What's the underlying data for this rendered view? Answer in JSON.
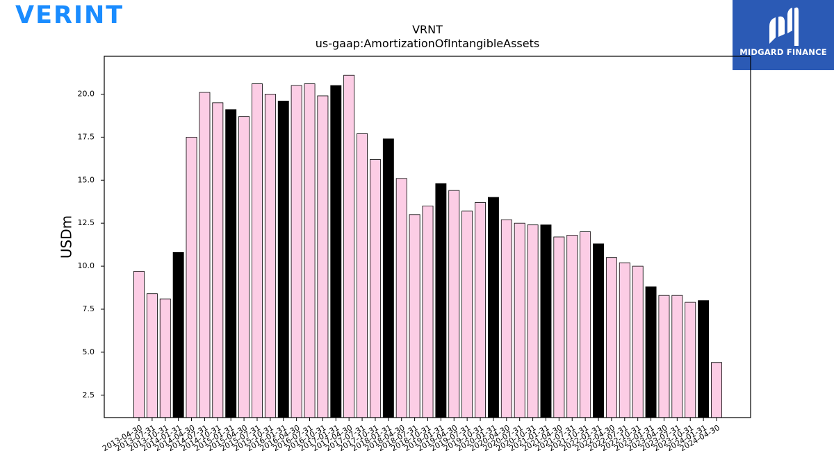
{
  "brand": {
    "name": "VERINT"
  },
  "watermark": {
    "label": "MIDGARD FINANCE"
  },
  "colors": {
    "highlight": "#000000",
    "normal": "#fccde5",
    "edge": "#000000",
    "watermark_bg": "#2b5ab5",
    "brand_text": "#1a8cff"
  },
  "chart_data": {
    "type": "bar",
    "title": "VRNT",
    "subtitle": "us-gaap:AmortizationOfIntangibleAssets",
    "ylabel": "USDm",
    "xlabel": "",
    "ylim": [
      1.2,
      22.2
    ],
    "yticks": [
      "2.5",
      "5.0",
      "7.5",
      "10.0",
      "12.5",
      "15.0",
      "17.5",
      "20.0"
    ],
    "grid": false,
    "categories": [
      "2013-04-30",
      "2013-07-31",
      "2013-10-31",
      "2014-01-31",
      "2014-04-30",
      "2014-07-31",
      "2014-10-31",
      "2015-01-31",
      "2015-04-30",
      "2015-07-31",
      "2015-10-31",
      "2016-01-31",
      "2016-04-30",
      "2016-07-31",
      "2016-10-31",
      "2017-01-31",
      "2017-04-30",
      "2017-07-31",
      "2017-10-31",
      "2018-01-31",
      "2018-04-30",
      "2018-07-31",
      "2018-10-31",
      "2019-01-31",
      "2019-04-30",
      "2019-07-31",
      "2019-10-31",
      "2020-01-31",
      "2020-04-30",
      "2020-07-31",
      "2020-10-31",
      "2021-01-31",
      "2021-04-30",
      "2021-07-31",
      "2021-10-31",
      "2022-01-31",
      "2022-04-30",
      "2022-07-31",
      "2022-10-31",
      "2023-01-31",
      "2023-04-30",
      "2023-07-31",
      "2023-10-31",
      "2024-01-31",
      "2024-04-30"
    ],
    "values": [
      9.7,
      8.4,
      8.1,
      10.8,
      17.5,
      20.1,
      19.5,
      19.1,
      18.7,
      20.6,
      20.0,
      19.6,
      20.5,
      20.6,
      19.9,
      20.5,
      21.1,
      17.7,
      16.2,
      17.4,
      15.1,
      13.0,
      13.5,
      14.8,
      14.4,
      13.2,
      13.7,
      14.0,
      12.7,
      12.5,
      12.4,
      12.4,
      11.7,
      11.8,
      12.0,
      11.3,
      10.5,
      10.2,
      10.0,
      8.8,
      8.3,
      8.3,
      7.9,
      8.0,
      4.4
    ],
    "highlighted": [
      false,
      false,
      false,
      true,
      false,
      false,
      false,
      true,
      false,
      false,
      false,
      true,
      false,
      false,
      false,
      true,
      false,
      false,
      false,
      true,
      false,
      false,
      false,
      true,
      false,
      false,
      false,
      true,
      false,
      false,
      false,
      true,
      false,
      false,
      false,
      true,
      false,
      false,
      false,
      true,
      false,
      false,
      false,
      true,
      false
    ]
  }
}
